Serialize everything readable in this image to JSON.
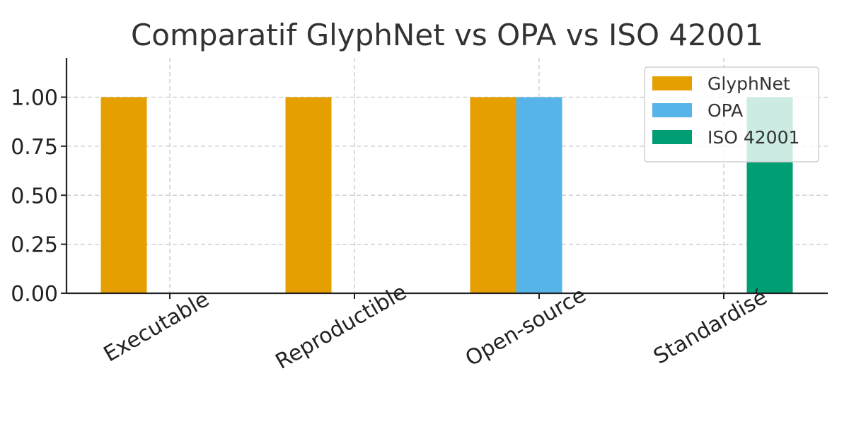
{
  "chart_data": {
    "type": "bar",
    "title": "Comparatif GlyphNet vs OPA vs ISO 42001",
    "xlabel": "",
    "ylabel": "",
    "categories": [
      "Executable",
      "Reproductible",
      "Open-source",
      "Standardisé"
    ],
    "series": [
      {
        "name": "GlyphNet",
        "values": [
          1,
          1,
          1,
          0
        ],
        "color": "#E69F00"
      },
      {
        "name": "OPA",
        "values": [
          0,
          0,
          1,
          0
        ],
        "color": "#56B4E9"
      },
      {
        "name": "ISO 42001",
        "values": [
          0,
          0,
          0,
          1
        ],
        "color": "#009E73"
      }
    ],
    "ylim": [
      0,
      1.2
    ],
    "yticks": [
      "0.00",
      "0.25",
      "0.50",
      "0.75",
      "1.00"
    ],
    "grid": true,
    "legend_position": "top-right"
  }
}
